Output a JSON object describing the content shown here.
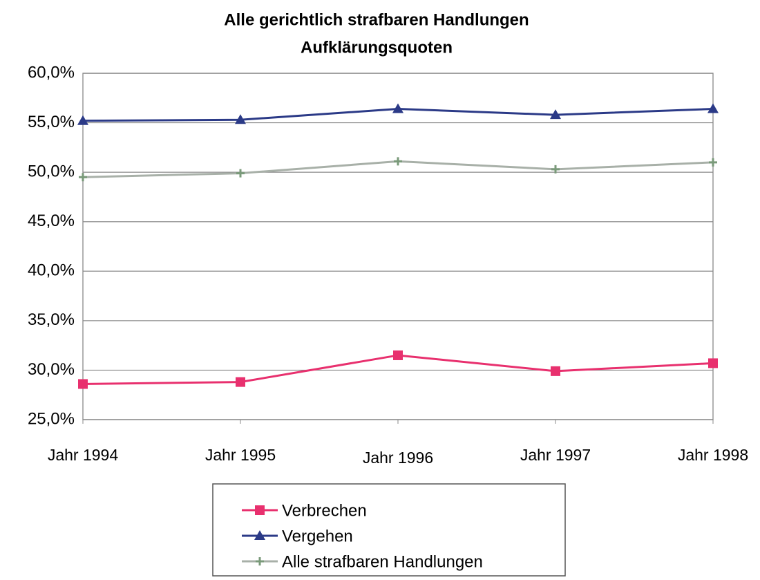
{
  "chart_data": {
    "type": "line",
    "title": "Alle gerichtlich strafbaren Handlungen",
    "subtitle": "Aufklärungsquoten",
    "categories": [
      "Jahr 1994",
      "Jahr 1995",
      "Jahr 1996",
      "Jahr 1997",
      "Jahr 1998"
    ],
    "series": [
      {
        "name": "Verbrechen",
        "color": "#e8306e",
        "marker": "square",
        "values": [
          28.6,
          28.8,
          31.5,
          29.9,
          30.7
        ]
      },
      {
        "name": "Vergehen",
        "color": "#2b3a87",
        "marker": "triangle",
        "values": [
          55.2,
          55.3,
          56.4,
          55.8,
          56.4
        ]
      },
      {
        "name": "Alle strafbaren Handlungen",
        "color": "#a8b0a8",
        "marker": "plus",
        "values": [
          49.5,
          49.9,
          51.1,
          50.3,
          51.0
        ]
      }
    ],
    "ylim": [
      25,
      60
    ],
    "yticks": [
      {
        "value": 25,
        "label": "25,0%"
      },
      {
        "value": 30,
        "label": "30,0%"
      },
      {
        "value": 35,
        "label": "35,0%"
      },
      {
        "value": 40,
        "label": "40,0%"
      },
      {
        "value": 45,
        "label": "45,0%"
      },
      {
        "value": 50,
        "label": "50,0%"
      },
      {
        "value": 55,
        "label": "55,0%"
      },
      {
        "value": 60,
        "label": "60,0%"
      }
    ],
    "grid": true,
    "legend": "bottom"
  }
}
